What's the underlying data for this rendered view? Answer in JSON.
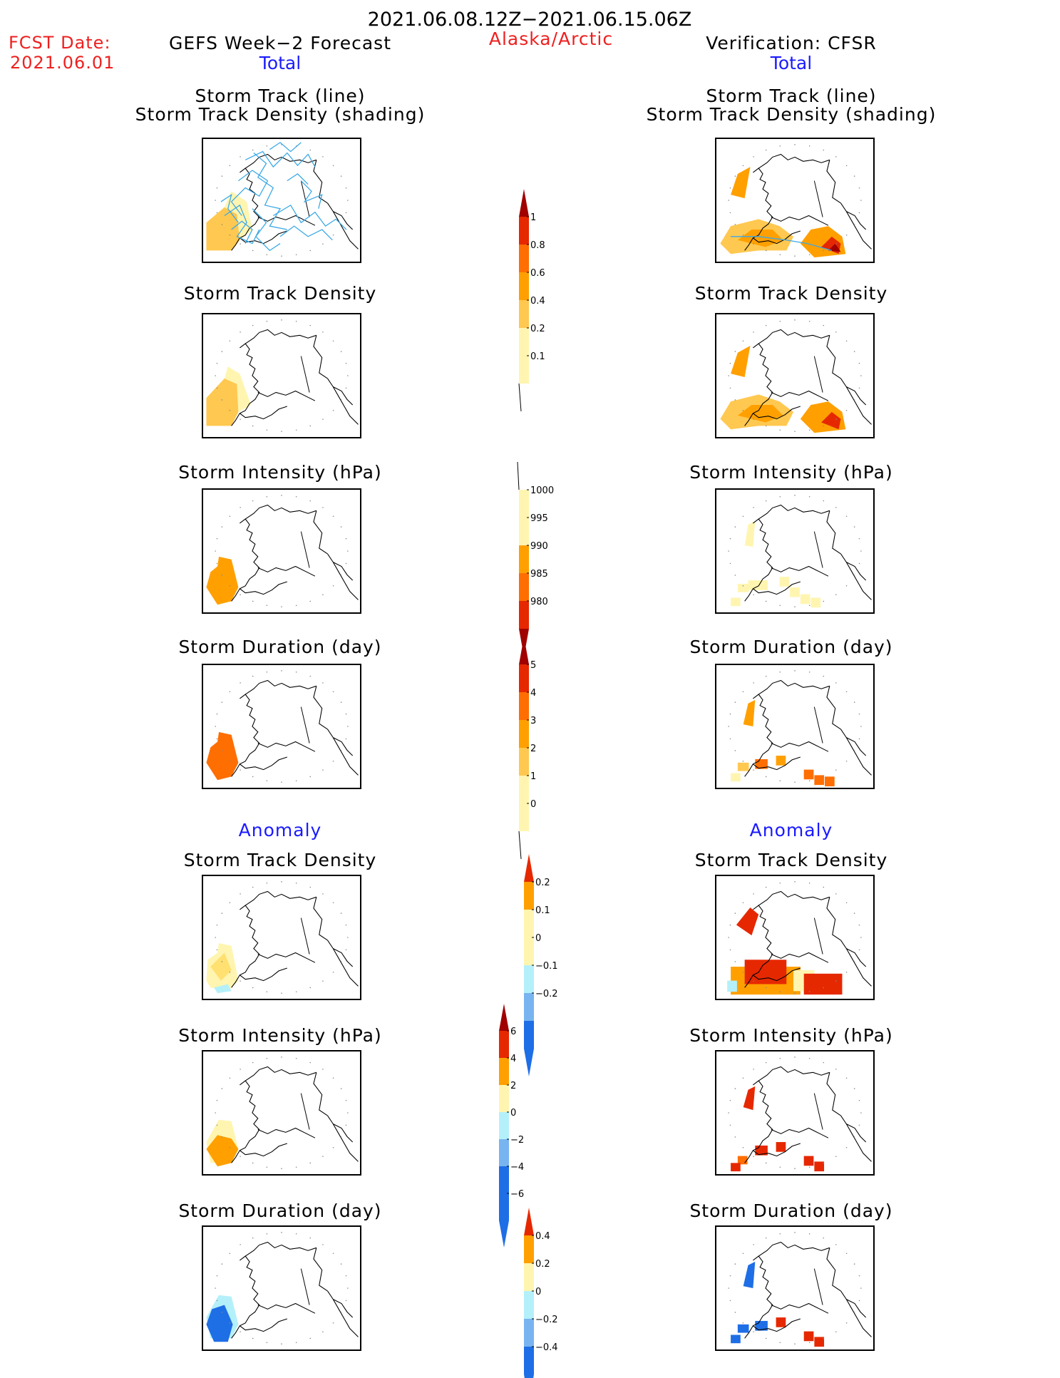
{
  "header": {
    "date_range": "2021.06.08.12Z−2021.06.15.06Z",
    "fcst_label": "FCST Date:",
    "fcst_date": "2021.06.01",
    "forecast_title": "GEFS Week−2 Forecast",
    "region": "Alaska/Arctic",
    "verification_title": "Verification: CFSR",
    "total_label": "Total",
    "anomaly_label": "Anomaly"
  },
  "panels": {
    "track_line": "Storm Track (line)",
    "track_density_shading": "Storm Track Density (shading)",
    "track_density": "Storm Track Density",
    "intensity": "Storm Intensity (hPa)",
    "duration": "Storm Duration (day)"
  },
  "colorbars": {
    "density_total": [
      "0.1",
      "0.2",
      "0.4",
      "0.6",
      "0.8",
      "1"
    ],
    "intensity_total": [
      "1000",
      "995",
      "990",
      "985",
      "980"
    ],
    "duration_total": [
      "0",
      "1",
      "2",
      "3",
      "4",
      "5"
    ],
    "density_anom": [
      "0.2",
      "0.1",
      "0",
      "−0.1",
      "−0.2"
    ],
    "intensity_anom": [
      "6",
      "4",
      "2",
      "0",
      "−2",
      "−4",
      "−6"
    ],
    "duration_anom": [
      "0.4",
      "0.2",
      "0",
      "−0.2",
      "−0.4"
    ]
  },
  "colors": {
    "title_red": "#ee2020",
    "label_blue": "#1a1aff",
    "track_line": "#3aa8e6",
    "pale_yellow": "#fff5b0",
    "light_orange": "#ffc850",
    "orange": "#ffa000",
    "dark_orange": "#ff6e00",
    "red": "#e62800",
    "dark_red": "#a00000",
    "light_blue": "#b4f0fa",
    "mid_blue": "#78b4f0",
    "blue": "#1e6ee6"
  }
}
